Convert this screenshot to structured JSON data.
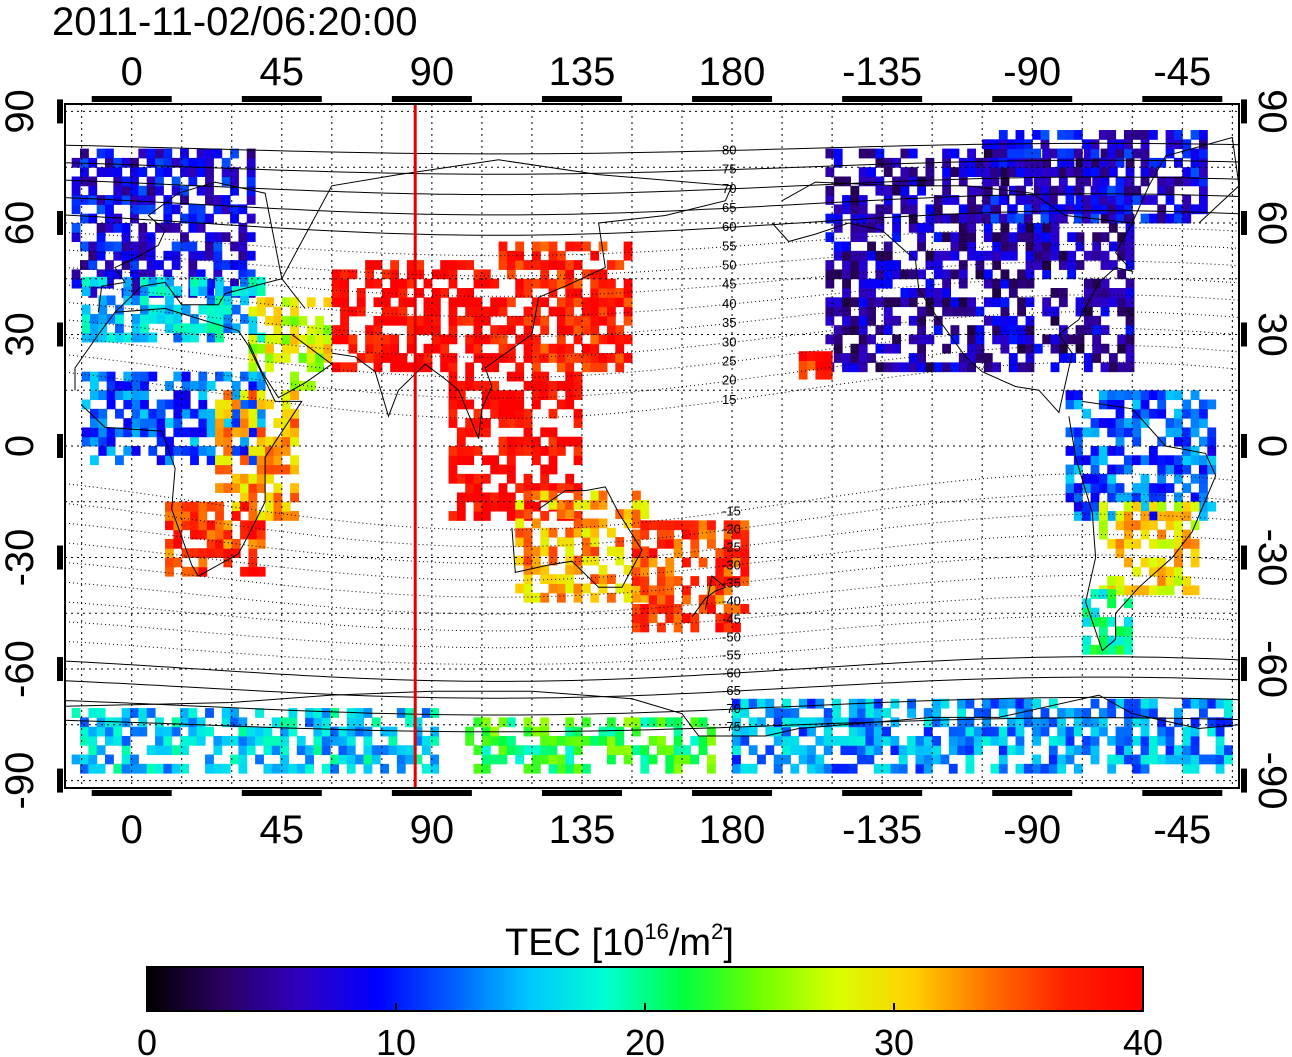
{
  "timestamp": "2011-11-02/06:20:00",
  "map": {
    "lon_ticks": [
      "0",
      "45",
      "90",
      "135",
      "180",
      "-135",
      "-90",
      "-45"
    ],
    "lon_tick_values": [
      0,
      45,
      90,
      135,
      180,
      225,
      270,
      315
    ],
    "lon_range": [
      -20,
      332
    ],
    "lat_ticks": [
      "90",
      "60",
      "30",
      "0",
      "-30",
      "-60",
      "-90"
    ],
    "lat_tick_values": [
      90,
      60,
      30,
      0,
      -30,
      -60,
      -90
    ],
    "lat_range": [
      -92,
      92
    ],
    "gridlines": "dotted every 15 degrees",
    "marker_longitude": 85,
    "marker_color": "#e00000",
    "contour_labels": [
      "80",
      "75",
      "70",
      "65",
      "60",
      "55",
      "50",
      "45",
      "40",
      "35",
      "30",
      "25",
      "20",
      "15",
      "-15",
      "-20",
      "-25",
      "-30",
      "-35",
      "-40",
      "-45",
      "-50",
      "-55",
      "-60",
      "-65",
      "-70",
      "-75"
    ],
    "contour_label_lats": [
      80,
      75,
      70,
      65,
      60,
      55,
      50,
      45,
      40,
      35,
      30,
      25,
      20,
      15,
      -15,
      -20,
      -25,
      -30,
      -35,
      -40,
      -45,
      -50,
      -55,
      -60,
      -65,
      -70,
      -75
    ]
  },
  "colorbar": {
    "title_text": "TEC  [10",
    "title_sup1": "16",
    "title_mid": "/m",
    "title_sup2": "2",
    "title_end": "]",
    "min": 0,
    "max": 40,
    "tick_labels": [
      "0",
      "10",
      "20",
      "30",
      "40"
    ],
    "tick_values": [
      0,
      10,
      20,
      30,
      40
    ],
    "colors": [
      "#000000",
      "#2a0060",
      "#3000c0",
      "#0000ff",
      "#0060ff",
      "#00c8ff",
      "#00ffd0",
      "#00ff40",
      "#70ff00",
      "#d8ff00",
      "#ffd000",
      "#ff7000",
      "#ff2000",
      "#ff0000"
    ]
  },
  "tec_regions": [
    {
      "name": "north-america-high",
      "lon": [
        208,
        300
      ],
      "lat": [
        20,
        78
      ],
      "tec": 6
    },
    {
      "name": "greenland-arctic",
      "lon": [
        255,
        322
      ],
      "lat": [
        60,
        85
      ],
      "tec": 8
    },
    {
      "name": "europe-north",
      "lon": [
        -18,
        35
      ],
      "lat": [
        40,
        78
      ],
      "tec": 8
    },
    {
      "name": "europe-south",
      "lon": [
        -15,
        40
      ],
      "lat": [
        28,
        45
      ],
      "tec": 16
    },
    {
      "name": "middle-east",
      "lon": [
        35,
        60
      ],
      "lat": [
        15,
        40
      ],
      "tec": 28
    },
    {
      "name": "africa-north",
      "lon": [
        -15,
        40
      ],
      "lat": [
        -5,
        20
      ],
      "tec": 12
    },
    {
      "name": "africa-east",
      "lon": [
        25,
        50
      ],
      "lat": [
        -20,
        15
      ],
      "tec": 32
    },
    {
      "name": "south-africa",
      "lon": [
        10,
        40
      ],
      "lat": [
        -35,
        -15
      ],
      "tec": 36
    },
    {
      "name": "asia-central",
      "lon": [
        60,
        110
      ],
      "lat": [
        20,
        50
      ],
      "tec": 40
    },
    {
      "name": "east-asia",
      "lon": [
        110,
        150
      ],
      "lat": [
        20,
        55
      ],
      "tec": 38
    },
    {
      "name": "southeast-asia",
      "lon": [
        95,
        135
      ],
      "lat": [
        -20,
        20
      ],
      "tec": 40
    },
    {
      "name": "australia",
      "lon": [
        115,
        155
      ],
      "lat": [
        -42,
        -12
      ],
      "tec": 32
    },
    {
      "name": "oceania",
      "lon": [
        150,
        185
      ],
      "lat": [
        -50,
        -20
      ],
      "tec": 36
    },
    {
      "name": "south-america-north",
      "lon": [
        280,
        325
      ],
      "lat": [
        -20,
        15
      ],
      "tec": 12
    },
    {
      "name": "south-america-central",
      "lon": [
        290,
        320
      ],
      "lat": [
        -40,
        -15
      ],
      "tec": 30
    },
    {
      "name": "patagonia",
      "lon": [
        285,
        300
      ],
      "lat": [
        -56,
        -40
      ],
      "tec": 20
    },
    {
      "name": "antarctic-east",
      "lon": [
        100,
        175
      ],
      "lat": [
        -88,
        -75
      ],
      "tec": 22
    },
    {
      "name": "antarctic-west",
      "lon": [
        180,
        330
      ],
      "lat": [
        -88,
        -70
      ],
      "tec": 14
    },
    {
      "name": "antarctic-atlantic",
      "lon": [
        -18,
        90
      ],
      "lat": [
        -88,
        -72
      ],
      "tec": 16
    },
    {
      "name": "pacific-hawaii",
      "lon": [
        200,
        208
      ],
      "lat": [
        18,
        25
      ],
      "tec": 38
    }
  ]
}
